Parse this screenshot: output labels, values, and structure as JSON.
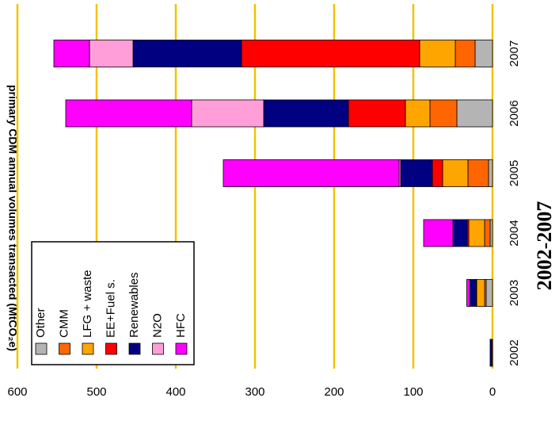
{
  "chart_data": {
    "type": "stacked-bar",
    "title": "2002-2007",
    "y_label": "primary CDM annual volumes transacted (MtCO₂e)",
    "categories": [
      "2002",
      "2003",
      "2004",
      "2005",
      "2006",
      "2007"
    ],
    "series": [
      {
        "name": "Other",
        "color": "#b4b4b4",
        "values": [
          0,
          8,
          3,
          5,
          45,
          22
        ]
      },
      {
        "name": "CMM",
        "color": "#ff6600",
        "values": [
          0,
          2,
          7,
          26,
          34,
          25
        ]
      },
      {
        "name": "LFG + waste",
        "color": "#ffa500",
        "values": [
          0,
          10,
          20,
          32,
          31,
          45
        ]
      },
      {
        "name": "EE+Fuel s.",
        "color": "#ff0000",
        "values": [
          0,
          0.5,
          2,
          13,
          72,
          225
        ]
      },
      {
        "name": "Renewables",
        "color": "#000080",
        "values": [
          3,
          8,
          18,
          40,
          107,
          137
        ]
      },
      {
        "name": "N2O",
        "color": "#ff9ed8",
        "values": [
          0,
          0,
          0,
          2,
          91,
          55
        ]
      },
      {
        "name": "HFC",
        "color": "#ff00ff",
        "values": [
          0,
          4,
          37,
          222,
          159,
          45
        ]
      }
    ],
    "ylim": [
      0,
      600
    ],
    "yticks": [
      0,
      100,
      200,
      300,
      400,
      500,
      600
    ],
    "grid": true,
    "grid_color": "#f2c200"
  }
}
